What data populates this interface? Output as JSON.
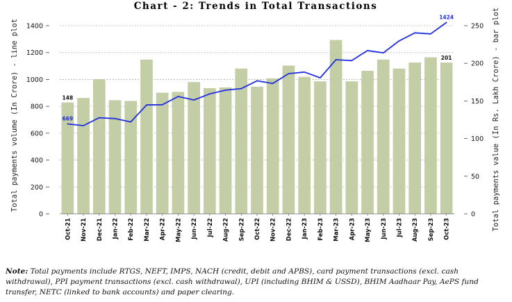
{
  "chart_data": {
    "type": "bar",
    "title": "Chart - 2: Trends in Total Transactions",
    "ylabel_left": "Total payments volume (In Crore) - line plot",
    "ylabel_right": "Total payments value (In Rs. Lakh Crore) - bar plot",
    "ylim_left": [
      0,
      1400
    ],
    "ylim_right": [
      0,
      250
    ],
    "yticks_left": [
      0,
      200,
      400,
      600,
      800,
      1000,
      1200,
      1400
    ],
    "yticks_right": [
      0,
      50,
      100,
      150,
      200,
      250
    ],
    "grid": "horizontal dotted",
    "categories": [
      "Oct-21",
      "Nov-21",
      "Dec-21",
      "Jan-22",
      "Feb-22",
      "Mar-22",
      "Apr-22",
      "May-22",
      "Jun-22",
      "Jul-22",
      "Aug-22",
      "Sep-22",
      "Oct-22",
      "Nov-22",
      "Dec-22",
      "Jan-23",
      "Feb-23",
      "Mar-23",
      "Apr-23",
      "May-23",
      "Jun-23",
      "Jul-23",
      "Aug-23",
      "Sep-23",
      "Oct-23"
    ],
    "series": [
      {
        "type": "bar",
        "axis": "right",
        "color": "#c4cea6",
        "values": [
          148,
          154,
          179,
          151,
          150,
          205,
          161,
          162,
          175,
          167,
          168,
          193,
          169,
          180,
          197,
          182,
          176,
          231,
          176,
          190,
          205,
          193,
          201,
          208,
          201
        ]
      },
      {
        "type": "line",
        "axis": "left",
        "color": "#1f2ee0",
        "values": [
          669,
          656,
          715,
          709,
          684,
          810,
          812,
          873,
          847,
          892,
          920,
          932,
          990,
          970,
          1043,
          1055,
          1012,
          1147,
          1140,
          1215,
          1198,
          1287,
          1347,
          1339,
          1424
        ]
      }
    ],
    "annotations": [
      {
        "series": 0,
        "index": 0,
        "label": "148"
      },
      {
        "series": 0,
        "index": 24,
        "label": "201"
      },
      {
        "series": 1,
        "index": 0,
        "label": "669"
      },
      {
        "series": 1,
        "index": 24,
        "label": "1424"
      }
    ]
  },
  "note": {
    "label": "Note:",
    "text": "Total payments include RTGS, NEFT, IMPS, NACH (credit, debit and APBS), card payment transactions (excl. cash withdrawal), PPI payment transactions (excl. cash withdrawal), UPI (including BHIM & USSD), BHIM Aadhaar Pay, AePS fund transfer, NETC (linked to bank accounts) and paper clearing."
  }
}
